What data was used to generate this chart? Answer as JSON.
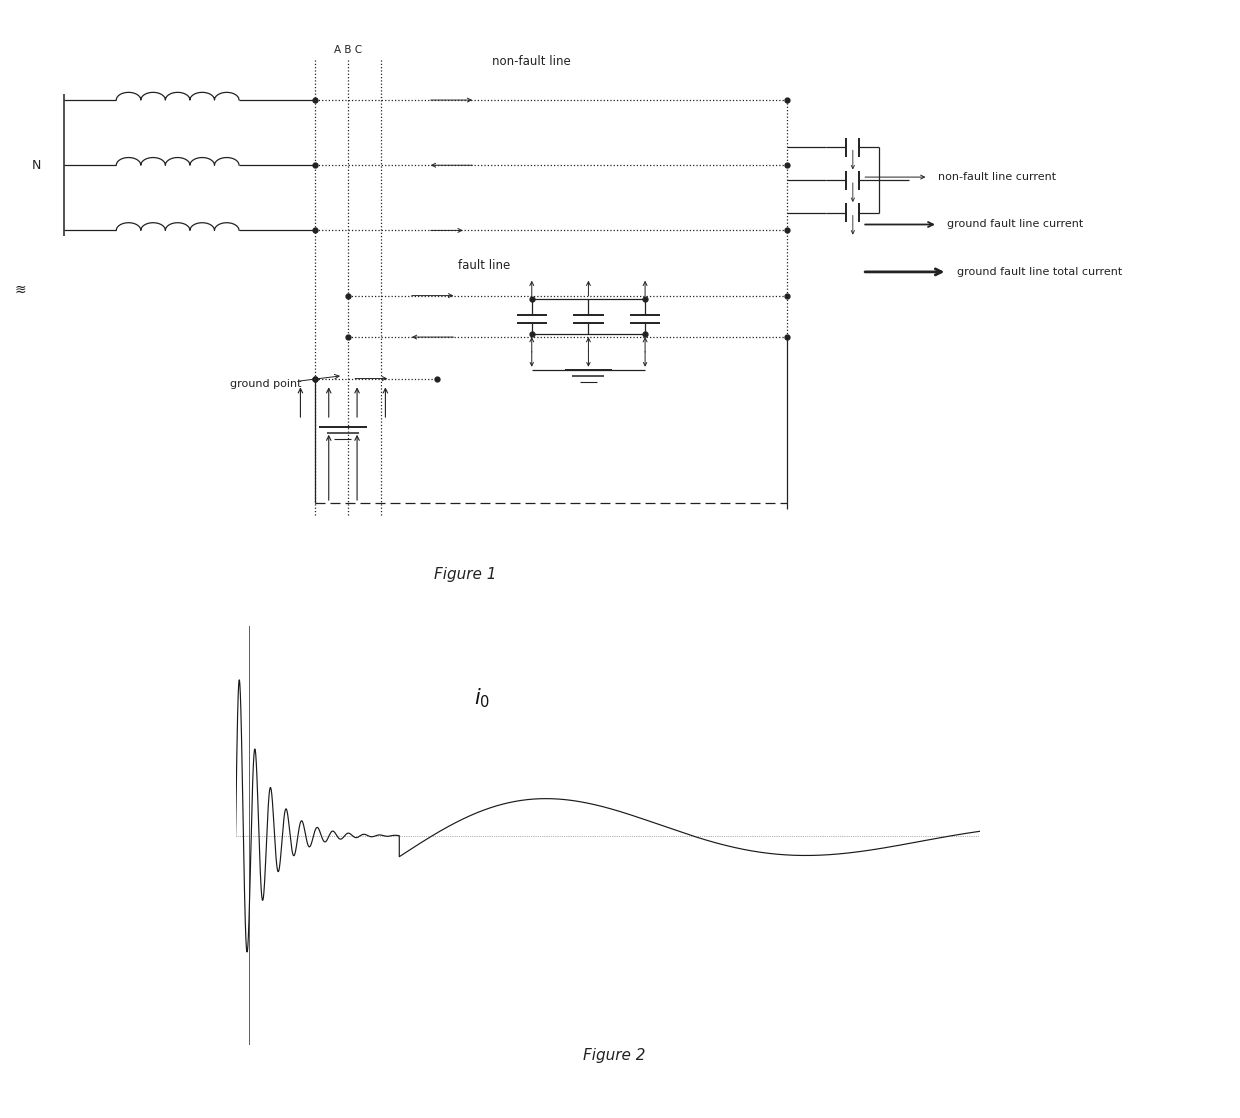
{
  "fig1_title": "Figure 1",
  "fig2_title": "Figure 2",
  "bg": "#ffffff",
  "fig2_bg": "#d0d0d0",
  "col": "#222222",
  "label_N": "N",
  "label_ABC": "A B C",
  "label_nfl": "non-fault line",
  "label_fl": "fault line",
  "label_gp": "ground point",
  "legend_1": "non-fault line current",
  "legend_2": "ground fault line current",
  "legend_3": "ground fault line total current",
  "fig1_caption": "Figure 1",
  "fig2_caption": "Figure 2",
  "sep_line_color": "#aaaaaa"
}
